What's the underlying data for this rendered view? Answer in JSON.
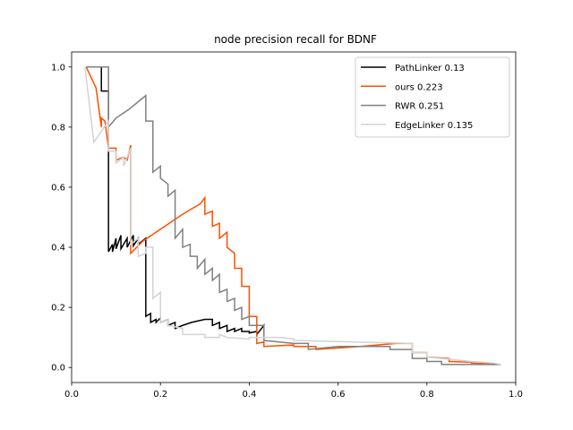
{
  "chart_data": {
    "type": "line",
    "title": "node precision recall for BDNF",
    "xlabel": "",
    "ylabel": "",
    "xlim": [
      -0.0,
      1.0
    ],
    "ylim": [
      -0.05,
      1.05
    ],
    "xticks": [
      0.0,
      0.2,
      0.4,
      0.6,
      0.8,
      1.0
    ],
    "xtick_labels": [
      "0.0",
      "0.2",
      "0.4",
      "0.6",
      "0.8",
      "1.0"
    ],
    "yticks": [
      0.0,
      0.2,
      0.4,
      0.6,
      0.8,
      1.0
    ],
    "ytick_labels": [
      "0.0",
      "0.2",
      "0.4",
      "0.6",
      "0.8",
      "1.0"
    ],
    "grid": false,
    "legend_position": "top-right",
    "series": [
      {
        "name": "PathLinker 0.13",
        "color": "#000000",
        "points": [
          [
            0.033,
            1.0
          ],
          [
            0.067,
            1.0
          ],
          [
            0.067,
            0.92
          ],
          [
            0.083,
            0.92
          ],
          [
            0.083,
            0.385
          ],
          [
            0.092,
            0.41
          ],
          [
            0.092,
            0.385
          ],
          [
            0.1,
            0.43
          ],
          [
            0.1,
            0.395
          ],
          [
            0.111,
            0.44
          ],
          [
            0.111,
            0.395
          ],
          [
            0.125,
            0.43
          ],
          [
            0.125,
            0.4
          ],
          [
            0.139,
            0.44
          ],
          [
            0.139,
            0.405
          ],
          [
            0.15,
            0.43
          ],
          [
            0.15,
            0.41
          ],
          [
            0.167,
            0.43
          ],
          [
            0.167,
            0.17
          ],
          [
            0.178,
            0.18
          ],
          [
            0.178,
            0.15
          ],
          [
            0.19,
            0.16
          ],
          [
            0.19,
            0.15
          ],
          [
            0.2,
            0.165
          ],
          [
            0.2,
            0.15
          ],
          [
            0.217,
            0.16
          ],
          [
            0.217,
            0.14
          ],
          [
            0.233,
            0.15
          ],
          [
            0.233,
            0.13
          ],
          [
            0.25,
            0.14
          ],
          [
            0.27,
            0.15
          ],
          [
            0.3,
            0.16
          ],
          [
            0.317,
            0.16
          ],
          [
            0.317,
            0.14
          ],
          [
            0.333,
            0.15
          ],
          [
            0.333,
            0.13
          ],
          [
            0.35,
            0.14
          ],
          [
            0.35,
            0.12
          ],
          [
            0.367,
            0.13
          ],
          [
            0.367,
            0.12
          ],
          [
            0.383,
            0.13
          ],
          [
            0.383,
            0.12
          ],
          [
            0.4,
            0.12
          ],
          [
            0.4,
            0.115
          ],
          [
            0.417,
            0.12
          ],
          [
            0.417,
            0.11
          ],
          [
            0.433,
            0.14
          ],
          [
            0.433,
            0.1
          ]
        ]
      },
      {
        "name": "ours 0.223",
        "color": "#ff5000",
        "points": [
          [
            0.033,
            1.0
          ],
          [
            0.055,
            0.93
          ],
          [
            0.067,
            0.8
          ],
          [
            0.067,
            0.83
          ],
          [
            0.075,
            0.82
          ],
          [
            0.083,
            0.73
          ],
          [
            0.1,
            0.73
          ],
          [
            0.1,
            0.69
          ],
          [
            0.117,
            0.7
          ],
          [
            0.125,
            0.69
          ],
          [
            0.133,
            0.74
          ],
          [
            0.133,
            0.7
          ],
          [
            0.133,
            0.38
          ],
          [
            0.16,
            0.42
          ],
          [
            0.2,
            0.46
          ],
          [
            0.25,
            0.51
          ],
          [
            0.29,
            0.545
          ],
          [
            0.3,
            0.565
          ],
          [
            0.3,
            0.51
          ],
          [
            0.317,
            0.52
          ],
          [
            0.317,
            0.47
          ],
          [
            0.333,
            0.48
          ],
          [
            0.333,
            0.43
          ],
          [
            0.35,
            0.45
          ],
          [
            0.35,
            0.4
          ],
          [
            0.367,
            0.38
          ],
          [
            0.367,
            0.33
          ],
          [
            0.383,
            0.33
          ],
          [
            0.383,
            0.27
          ],
          [
            0.4,
            0.27
          ],
          [
            0.4,
            0.17
          ],
          [
            0.417,
            0.17
          ],
          [
            0.417,
            0.08
          ],
          [
            0.433,
            0.085
          ],
          [
            0.433,
            0.07
          ],
          [
            0.5,
            0.075
          ],
          [
            0.5,
            0.07
          ],
          [
            0.55,
            0.07
          ],
          [
            0.55,
            0.06
          ],
          [
            0.65,
            0.07
          ],
          [
            0.73,
            0.08
          ],
          [
            0.767,
            0.08
          ],
          [
            0.767,
            0.05
          ],
          [
            0.8,
            0.05
          ],
          [
            0.8,
            0.035
          ],
          [
            0.85,
            0.03
          ],
          [
            0.85,
            0.02
          ],
          [
            0.9,
            0.018
          ],
          [
            0.9,
            0.015
          ],
          [
            0.95,
            0.012
          ],
          [
            0.967,
            0.01
          ]
        ]
      },
      {
        "name": "RWR 0.251",
        "color": "#808080",
        "points": [
          [
            0.033,
            1.0
          ],
          [
            0.083,
            1.0
          ],
          [
            0.083,
            0.8
          ],
          [
            0.1,
            0.83
          ],
          [
            0.13,
            0.86
          ],
          [
            0.167,
            0.905
          ],
          [
            0.167,
            0.82
          ],
          [
            0.183,
            0.82
          ],
          [
            0.183,
            0.65
          ],
          [
            0.2,
            0.67
          ],
          [
            0.2,
            0.63
          ],
          [
            0.217,
            0.61
          ],
          [
            0.217,
            0.57
          ],
          [
            0.233,
            0.59
          ],
          [
            0.233,
            0.43
          ],
          [
            0.25,
            0.46
          ],
          [
            0.25,
            0.4
          ],
          [
            0.267,
            0.41
          ],
          [
            0.267,
            0.37
          ],
          [
            0.283,
            0.37
          ],
          [
            0.283,
            0.33
          ],
          [
            0.3,
            0.36
          ],
          [
            0.3,
            0.31
          ],
          [
            0.317,
            0.33
          ],
          [
            0.317,
            0.29
          ],
          [
            0.333,
            0.31
          ],
          [
            0.333,
            0.25
          ],
          [
            0.35,
            0.26
          ],
          [
            0.35,
            0.22
          ],
          [
            0.367,
            0.23
          ],
          [
            0.367,
            0.19
          ],
          [
            0.383,
            0.2
          ],
          [
            0.383,
            0.16
          ],
          [
            0.4,
            0.17
          ],
          [
            0.4,
            0.14
          ],
          [
            0.433,
            0.14
          ],
          [
            0.433,
            0.09
          ],
          [
            0.5,
            0.08
          ],
          [
            0.533,
            0.08
          ],
          [
            0.533,
            0.06
          ],
          [
            0.6,
            0.07
          ],
          [
            0.717,
            0.07
          ],
          [
            0.717,
            0.06
          ],
          [
            0.767,
            0.06
          ],
          [
            0.767,
            0.03
          ],
          [
            0.8,
            0.03
          ],
          [
            0.8,
            0.02
          ],
          [
            0.833,
            0.02
          ],
          [
            0.833,
            0.01
          ],
          [
            0.967,
            0.01
          ]
        ]
      },
      {
        "name": "EdgeLinker 0.135",
        "color": "#d3d3d3",
        "points": [
          [
            0.03,
            1.0
          ],
          [
            0.05,
            0.75
          ],
          [
            0.083,
            0.82
          ],
          [
            0.083,
            0.72
          ],
          [
            0.1,
            0.72
          ],
          [
            0.1,
            0.68
          ],
          [
            0.117,
            0.7
          ],
          [
            0.117,
            0.67
          ],
          [
            0.133,
            0.73
          ],
          [
            0.133,
            0.41
          ],
          [
            0.15,
            0.43
          ],
          [
            0.15,
            0.37
          ],
          [
            0.167,
            0.38
          ],
          [
            0.167,
            0.4
          ],
          [
            0.183,
            0.4
          ],
          [
            0.183,
            0.23
          ],
          [
            0.2,
            0.25
          ],
          [
            0.2,
            0.15
          ],
          [
            0.217,
            0.16
          ],
          [
            0.217,
            0.14
          ],
          [
            0.25,
            0.13
          ],
          [
            0.25,
            0.11
          ],
          [
            0.3,
            0.11
          ],
          [
            0.3,
            0.1
          ],
          [
            0.333,
            0.1
          ],
          [
            0.333,
            0.11
          ],
          [
            0.35,
            0.1
          ],
          [
            0.4,
            0.095
          ],
          [
            0.4,
            0.1
          ],
          [
            0.467,
            0.1
          ],
          [
            0.5,
            0.095
          ],
          [
            0.5,
            0.09
          ],
          [
            0.767,
            0.08
          ],
          [
            0.767,
            0.05
          ],
          [
            0.8,
            0.05
          ],
          [
            0.8,
            0.035
          ],
          [
            0.9,
            0.02
          ],
          [
            0.95,
            0.015
          ],
          [
            0.967,
            0.01
          ]
        ]
      }
    ]
  }
}
